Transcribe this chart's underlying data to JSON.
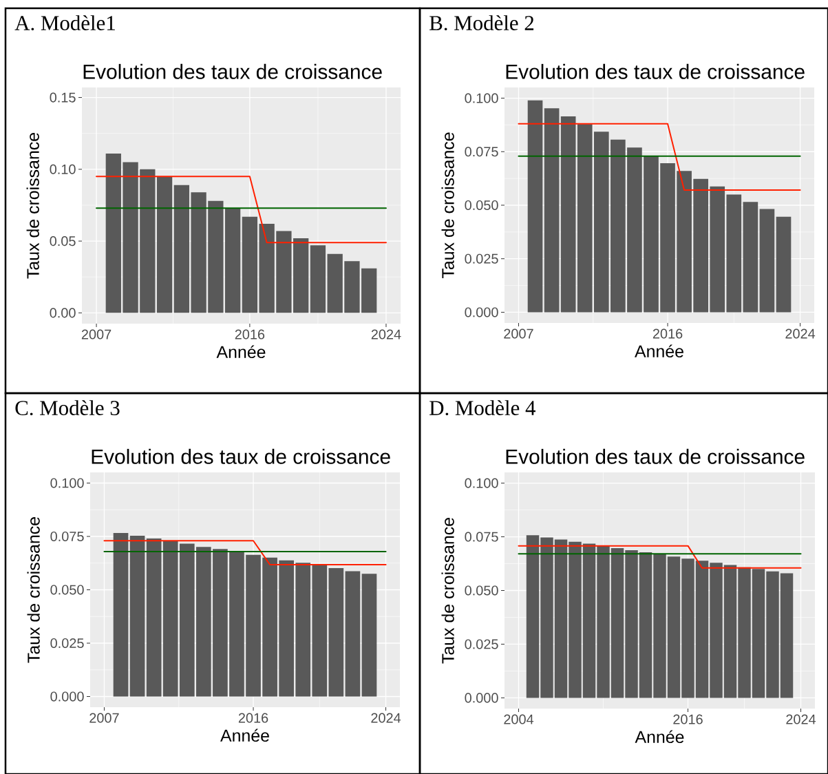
{
  "chart_data": [
    {
      "type": "bar",
      "title": "A. Modèle1",
      "subtitle": "Evolution des taux de croissance",
      "xlabel": "Année",
      "ylabel": "Taux de croissance",
      "x": [
        2008,
        2009,
        2010,
        2011,
        2012,
        2013,
        2014,
        2015,
        2016,
        2017,
        2018,
        2019,
        2020,
        2021,
        2022,
        2023
      ],
      "xlim": [
        2006.15,
        2024.85
      ],
      "xticks": [
        2007,
        2016,
        2024
      ],
      "ylim": [
        -0.0075,
        0.157
      ],
      "yticks": [
        {
          "value": 0,
          "label": "0.00"
        },
        {
          "value": 0.05,
          "label": "0.05"
        },
        {
          "value": 0.1,
          "label": "0.10"
        },
        {
          "value": 0.15,
          "label": "0.15"
        }
      ],
      "grid": true,
      "series": [
        {
          "color": "#595959",
          "values": [
            0.111,
            0.105,
            0.1,
            0.095,
            0.089,
            0.084,
            0.078,
            0.073,
            0.067,
            0.062,
            0.057,
            0.052,
            0.047,
            0.041,
            0.036,
            0.031
          ]
        },
        {
          "type": "line",
          "x": [
            2007,
            2016,
            2017,
            2024
          ],
          "color": "#ff2000",
          "values": [
            0.095,
            0.095,
            0.049,
            0.049
          ]
        },
        {
          "type": "line",
          "x": [
            2007,
            2024
          ],
          "color": "#006400",
          "values": [
            0.073,
            0.073
          ]
        }
      ]
    },
    {
      "type": "bar",
      "title": "B. Modèle 2",
      "subtitle": "Evolution des taux de croissance",
      "xlabel": "Année",
      "ylabel": "Taux de croissance",
      "x": [
        2008,
        2009,
        2010,
        2011,
        2012,
        2013,
        2014,
        2015,
        2016,
        2017,
        2018,
        2019,
        2020,
        2021,
        2022,
        2023
      ],
      "xlim": [
        2006.15,
        2024.85
      ],
      "xticks": [
        2007,
        2016,
        2024
      ],
      "ylim": [
        -0.005,
        0.105
      ],
      "yticks": [
        {
          "value": 0,
          "label": "0.000"
        },
        {
          "value": 0.025,
          "label": "0.025"
        },
        {
          "value": 0.05,
          "label": "0.050"
        },
        {
          "value": 0.075,
          "label": "0.075"
        },
        {
          "value": 0.1,
          "label": "0.100"
        }
      ],
      "grid": true,
      "series": [
        {
          "color": "#595959",
          "values": [
            0.099,
            0.0953,
            0.0915,
            0.0879,
            0.0843,
            0.0806,
            0.0769,
            0.0729,
            0.0696,
            0.066,
            0.0623,
            0.0588,
            0.055,
            0.0515,
            0.0482,
            0.0446
          ]
        },
        {
          "type": "line",
          "x": [
            2007,
            2016,
            2017,
            2024
          ],
          "color": "#ff2000",
          "values": [
            0.088,
            0.088,
            0.0571,
            0.0571
          ]
        },
        {
          "type": "line",
          "x": [
            2007,
            2024
          ],
          "color": "#006400",
          "values": [
            0.0729,
            0.0729
          ]
        }
      ]
    },
    {
      "type": "bar",
      "title": "C. Modèle 3",
      "subtitle": "Evolution des taux de croissance",
      "xlabel": "Année",
      "ylabel": "Taux de croissance",
      "x": [
        2008,
        2009,
        2010,
        2011,
        2012,
        2013,
        2014,
        2015,
        2016,
        2017,
        2018,
        2019,
        2020,
        2021,
        2022,
        2023
      ],
      "xlim": [
        2006.15,
        2024.85
      ],
      "xticks": [
        2007,
        2016,
        2024
      ],
      "ylim": [
        -0.005,
        0.105
      ],
      "yticks": [
        {
          "value": 0,
          "label": "0.000"
        },
        {
          "value": 0.025,
          "label": "0.025"
        },
        {
          "value": 0.05,
          "label": "0.050"
        },
        {
          "value": 0.075,
          "label": "0.075"
        },
        {
          "value": 0.1,
          "label": "0.100"
        }
      ],
      "grid": true,
      "series": [
        {
          "color": "#595959",
          "values": [
            0.0766,
            0.0753,
            0.074,
            0.0729,
            0.0716,
            0.0701,
            0.0691,
            0.0677,
            0.0664,
            0.0651,
            0.0638,
            0.0627,
            0.0615,
            0.0602,
            0.0587,
            0.0575
          ]
        },
        {
          "type": "line",
          "x": [
            2007,
            2016,
            2017,
            2024
          ],
          "color": "#ff2000",
          "values": [
            0.073,
            0.073,
            0.0618,
            0.0618
          ]
        },
        {
          "type": "line",
          "x": [
            2007,
            2024
          ],
          "color": "#006400",
          "values": [
            0.0679,
            0.0679
          ]
        }
      ]
    },
    {
      "type": "bar",
      "title": "D. Modèle 4",
      "subtitle": "Evolution des taux de croissance",
      "xlabel": "Année",
      "ylabel": "Taux de croissance",
      "x": [
        2005,
        2006,
        2007,
        2008,
        2009,
        2010,
        2011,
        2012,
        2013,
        2014,
        2015,
        2016,
        2017,
        2018,
        2019,
        2020,
        2021,
        2022,
        2023
      ],
      "xlim": [
        2003,
        2025
      ],
      "xticks": [
        2004,
        2016,
        2024
      ],
      "ylim": [
        -0.005,
        0.105
      ],
      "yticks": [
        {
          "value": 0,
          "label": "0.000"
        },
        {
          "value": 0.025,
          "label": "0.025"
        },
        {
          "value": 0.05,
          "label": "0.050"
        },
        {
          "value": 0.075,
          "label": "0.075"
        },
        {
          "value": 0.1,
          "label": "0.100"
        }
      ],
      "grid": true,
      "series": [
        {
          "color": "#595959",
          "values": [
            0.0757,
            0.0747,
            0.0737,
            0.0727,
            0.0718,
            0.0708,
            0.0697,
            0.0688,
            0.0678,
            0.0668,
            0.0658,
            0.0648,
            0.0639,
            0.0629,
            0.0619,
            0.0608,
            0.06,
            0.0589,
            0.058
          ]
        },
        {
          "type": "line",
          "x": [
            2004,
            2016,
            2017,
            2024
          ],
          "color": "#ff2000",
          "values": [
            0.0708,
            0.0708,
            0.0605,
            0.0605
          ]
        },
        {
          "type": "line",
          "x": [
            2004,
            2024
          ],
          "color": "#006400",
          "values": [
            0.0671,
            0.0671
          ]
        }
      ]
    }
  ]
}
